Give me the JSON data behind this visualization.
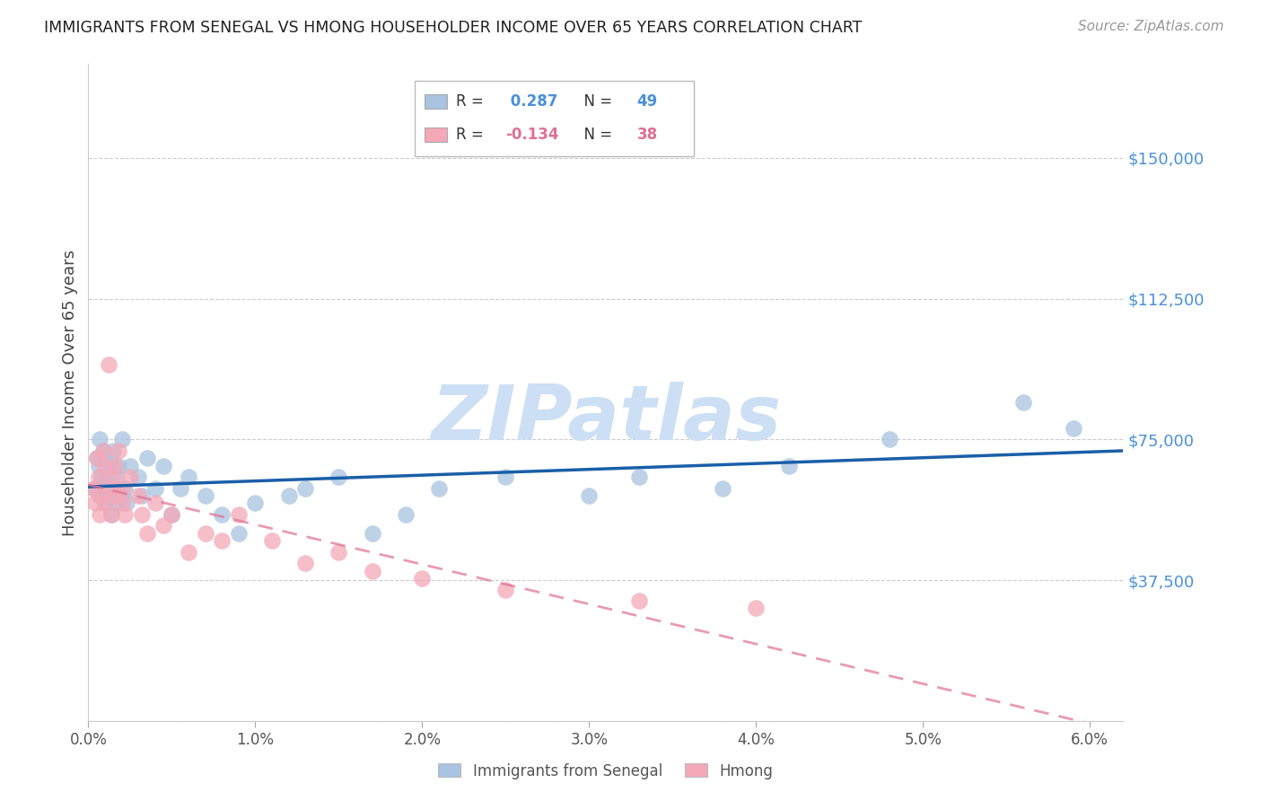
{
  "title": "IMMIGRANTS FROM SENEGAL VS HMONG HOUSEHOLDER INCOME OVER 65 YEARS CORRELATION CHART",
  "source": "Source: ZipAtlas.com",
  "ylabel": "Householder Income Over 65 years",
  "xlim": [
    0.0,
    0.062
  ],
  "ylim": [
    0,
    175000
  ],
  "yticks": [
    0,
    37500,
    75000,
    112500,
    150000
  ],
  "ytick_labels": [
    "",
    "$37,500",
    "$75,000",
    "$112,500",
    "$150,000"
  ],
  "xtick_labels": [
    "0.0%",
    "1.0%",
    "2.0%",
    "3.0%",
    "4.0%",
    "5.0%",
    "6.0%"
  ],
  "xticks": [
    0.0,
    0.01,
    0.02,
    0.03,
    0.04,
    0.05,
    0.06
  ],
  "senegal_R": 0.287,
  "senegal_N": 49,
  "hmong_R": -0.134,
  "hmong_N": 38,
  "senegal_color": "#a8c4e0",
  "hmong_color": "#f4a8b8",
  "senegal_line_color": "#1a5fa8",
  "hmong_line_color": "#e07090",
  "watermark_color": "#ccdff5",
  "senegal_x": [
    0.0004,
    0.0005,
    0.0006,
    0.0007,
    0.0007,
    0.0008,
    0.0009,
    0.001,
    0.001,
    0.001,
    0.0012,
    0.0013,
    0.0014,
    0.0015,
    0.0015,
    0.0016,
    0.0017,
    0.0018,
    0.002,
    0.002,
    0.0022,
    0.0023,
    0.0025,
    0.003,
    0.0032,
    0.0035,
    0.004,
    0.0045,
    0.005,
    0.0055,
    0.006,
    0.007,
    0.008,
    0.009,
    0.01,
    0.012,
    0.013,
    0.015,
    0.017,
    0.019,
    0.021,
    0.025,
    0.03,
    0.033,
    0.038,
    0.042,
    0.048,
    0.056,
    0.059
  ],
  "senegal_y": [
    62000,
    70000,
    68000,
    75000,
    60000,
    65000,
    72000,
    58000,
    65000,
    70000,
    60000,
    68000,
    55000,
    72000,
    62000,
    58000,
    65000,
    68000,
    60000,
    75000,
    62000,
    58000,
    68000,
    65000,
    60000,
    70000,
    62000,
    68000,
    55000,
    62000,
    65000,
    60000,
    55000,
    50000,
    58000,
    60000,
    62000,
    65000,
    50000,
    55000,
    62000,
    65000,
    60000,
    65000,
    62000,
    68000,
    75000,
    85000,
    78000
  ],
  "hmong_x": [
    0.0003,
    0.0004,
    0.0005,
    0.0006,
    0.0007,
    0.0008,
    0.0009,
    0.001,
    0.001,
    0.0012,
    0.0013,
    0.0014,
    0.0015,
    0.0016,
    0.0017,
    0.0018,
    0.002,
    0.002,
    0.0022,
    0.0025,
    0.003,
    0.0032,
    0.0035,
    0.004,
    0.0045,
    0.005,
    0.006,
    0.007,
    0.008,
    0.009,
    0.011,
    0.013,
    0.015,
    0.017,
    0.02,
    0.025,
    0.033,
    0.04
  ],
  "hmong_y": [
    62000,
    58000,
    70000,
    65000,
    55000,
    60000,
    72000,
    58000,
    68000,
    95000,
    62000,
    55000,
    65000,
    68000,
    60000,
    72000,
    58000,
    62000,
    55000,
    65000,
    60000,
    55000,
    50000,
    58000,
    52000,
    55000,
    45000,
    50000,
    48000,
    55000,
    48000,
    42000,
    45000,
    40000,
    38000,
    35000,
    32000,
    30000
  ]
}
